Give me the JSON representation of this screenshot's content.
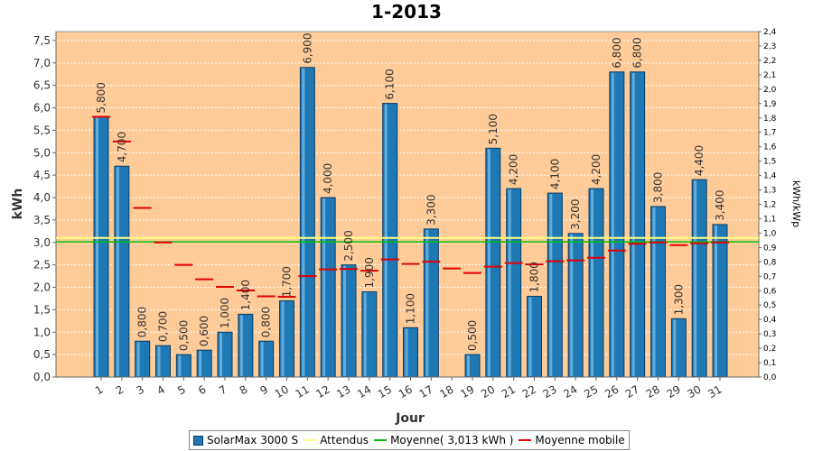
{
  "chart_data": {
    "type": "bar",
    "title": "1-2013",
    "xlabel": "Jour",
    "ylabel": "kWh",
    "y2label": "kWh/kWp",
    "ylim": [
      0,
      7.7
    ],
    "y2lim": [
      0,
      2.4
    ],
    "yticks": [
      "0,0",
      "0,5",
      "1,0",
      "1,5",
      "2,0",
      "2,5",
      "3,0",
      "3,5",
      "4,0",
      "4,5",
      "5,0",
      "5,5",
      "6,0",
      "6,5",
      "7,0",
      "7,5"
    ],
    "y2ticks": [
      "0,0",
      "0,1",
      "0,2",
      "0,3",
      "0,4",
      "0,5",
      "0,6",
      "0,7",
      "0,8",
      "0,9",
      "1,0",
      "1,1",
      "1,2",
      "1,3",
      "1,4",
      "1,5",
      "1,6",
      "1,7",
      "1,8",
      "1,9",
      "2,0",
      "2,1",
      "2,2",
      "2,3",
      "2,4"
    ],
    "categories": [
      "1",
      "2",
      "3",
      "4",
      "5",
      "6",
      "7",
      "8",
      "9",
      "10",
      "11",
      "12",
      "13",
      "14",
      "15",
      "16",
      "17",
      "18",
      "19",
      "20",
      "21",
      "22",
      "23",
      "24",
      "25",
      "26",
      "27",
      "28",
      "29",
      "30",
      "31"
    ],
    "series": [
      {
        "name": "SolarMax 3000 S",
        "type": "bar",
        "color": "#1e78b4",
        "values": [
          5.8,
          4.7,
          0.8,
          0.7,
          0.5,
          0.6,
          1.0,
          1.4,
          0.8,
          1.7,
          6.9,
          4.0,
          2.5,
          1.9,
          6.1,
          1.1,
          3.3,
          0.0,
          0.5,
          5.1,
          4.2,
          1.8,
          4.1,
          3.2,
          4.2,
          6.8,
          6.8,
          3.8,
          1.3,
          4.4,
          3.4
        ],
        "labels": [
          "5,800",
          "4,700",
          "0,800",
          "0,700",
          "0,500",
          "0,600",
          "1,000",
          "1,400",
          "0,800",
          "1,700",
          "6,900",
          "4,000",
          "2,500",
          "1,900",
          "6,100",
          "1,100",
          "3,300",
          "",
          "0,500",
          "5,100",
          "4,200",
          "1,800",
          "4,100",
          "3,200",
          "4,200",
          "6,800",
          "6,800",
          "3,800",
          "1,300",
          "4,400",
          "3,400"
        ]
      },
      {
        "name": "Attendus",
        "type": "line",
        "color": "#ffff80",
        "value": 3.1
      },
      {
        "name": "Moyenne( 3,013 kWh )",
        "type": "line",
        "color": "#00c000",
        "value": 3.013
      },
      {
        "name": "Moyenne mobile",
        "type": "marker",
        "color": "#e00000",
        "values": [
          5.8,
          5.25,
          3.77,
          3.0,
          2.5,
          2.18,
          2.01,
          1.93,
          1.8,
          1.79,
          2.25,
          2.4,
          2.41,
          2.37,
          2.62,
          2.52,
          2.57,
          2.42,
          2.32,
          2.46,
          2.54,
          2.51,
          2.58,
          2.6,
          2.66,
          2.82,
          2.97,
          3.0,
          2.94,
          2.98,
          3.0
        ]
      }
    ],
    "legend_position": "bottom",
    "grid": true,
    "colors": {
      "plot_background": "#ffcc99",
      "grid": "#ffffff"
    }
  }
}
